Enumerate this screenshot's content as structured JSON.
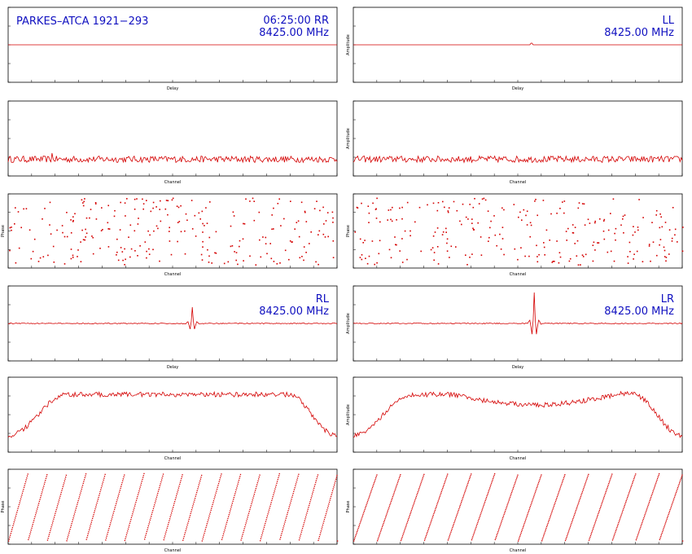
{
  "header": {
    "left": "PARKES–ATCA 1921−293",
    "freq": "8425.00 MHz"
  },
  "colors": {
    "trace": "#d40000",
    "frame": "#000000",
    "text": "#1010c0"
  },
  "chart_data": [
    {
      "id": "rr-delay",
      "type": "line",
      "pol": "RR",
      "time": "06:25:00",
      "freq": "8425.00 MHz",
      "xlabel": "Delay",
      "ylabel": "",
      "baseline": 0.5,
      "peak": "flat"
    },
    {
      "id": "ll-delay",
      "type": "line",
      "pol": "LL",
      "freq": "8425.00 MHz",
      "xlabel": "Delay",
      "ylabel": "Amplitude",
      "baseline": 0.5,
      "peak": "tiny"
    },
    {
      "id": "rr-chan",
      "type": "line",
      "xlabel": "Channel",
      "ylabel": "",
      "shape": "noise-low"
    },
    {
      "id": "ll-chan",
      "type": "line",
      "xlabel": "Channel",
      "ylabel": "Amplitude",
      "shape": "noise-low"
    },
    {
      "id": "rr-phase",
      "type": "scatter",
      "xlabel": "Channel",
      "ylabel": "Phase",
      "shape": "random"
    },
    {
      "id": "ll-phase",
      "type": "scatter",
      "xlabel": "Channel",
      "ylabel": "Phase",
      "shape": "random"
    },
    {
      "id": "rl-delay",
      "type": "line",
      "pol": "RL",
      "freq": "8425.00 MHz",
      "xlabel": "Delay",
      "ylabel": "",
      "baseline": 0.5,
      "peak": "center"
    },
    {
      "id": "lr-delay",
      "type": "line",
      "pol": "LR",
      "freq": "8425.00 MHz",
      "xlabel": "Delay",
      "ylabel": "Amplitude",
      "baseline": 0.5,
      "peak": "center-strong"
    },
    {
      "id": "rl-chan",
      "type": "line",
      "xlabel": "Channel",
      "ylabel": "",
      "shape": "bandpass"
    },
    {
      "id": "lr-chan",
      "type": "line",
      "xlabel": "Channel",
      "ylabel": "Amplitude",
      "shape": "bandpass-wavy"
    },
    {
      "id": "rl-phase",
      "type": "scatter",
      "xlabel": "Channel",
      "ylabel": "Phase",
      "shape": "wraps",
      "wraps": 17
    },
    {
      "id": "lr-phase",
      "type": "scatter",
      "xlabel": "Channel",
      "ylabel": "Phase",
      "shape": "wraps",
      "wraps": 14
    }
  ]
}
